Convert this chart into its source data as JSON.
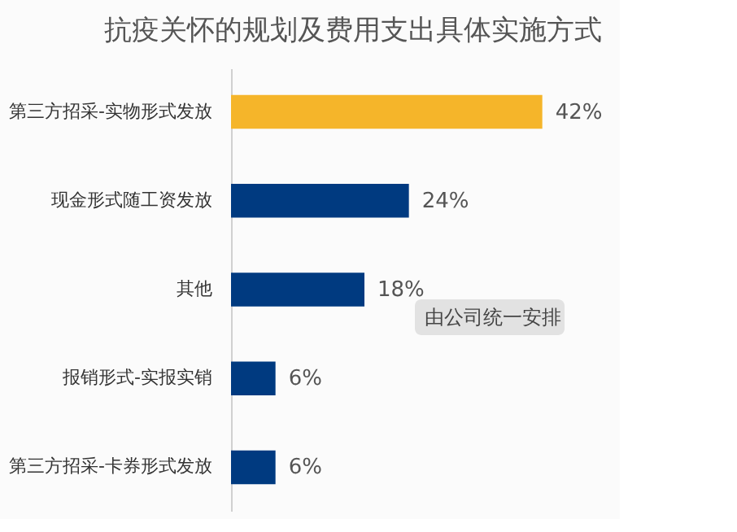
{
  "chart_data": {
    "type": "bar",
    "orientation": "horizontal",
    "title": "抗疫关怀的规划及费用支出具体实施方式",
    "categories": [
      "第三方招采-实物形式发放",
      "现金形式随工资发放",
      "其他",
      "报销形式-实报实销",
      "第三方招采-卡券形式发放"
    ],
    "values": [
      42,
      24,
      18,
      6,
      6
    ],
    "value_labels": [
      "42%",
      "24%",
      "18%",
      "6%",
      "6%"
    ],
    "colors": [
      "#f5b52a",
      "#003a80",
      "#003a80",
      "#003a80",
      "#003a80"
    ],
    "tick_labels": "y",
    "grid": false,
    "annotations": [
      "由公司统一安排"
    ]
  }
}
